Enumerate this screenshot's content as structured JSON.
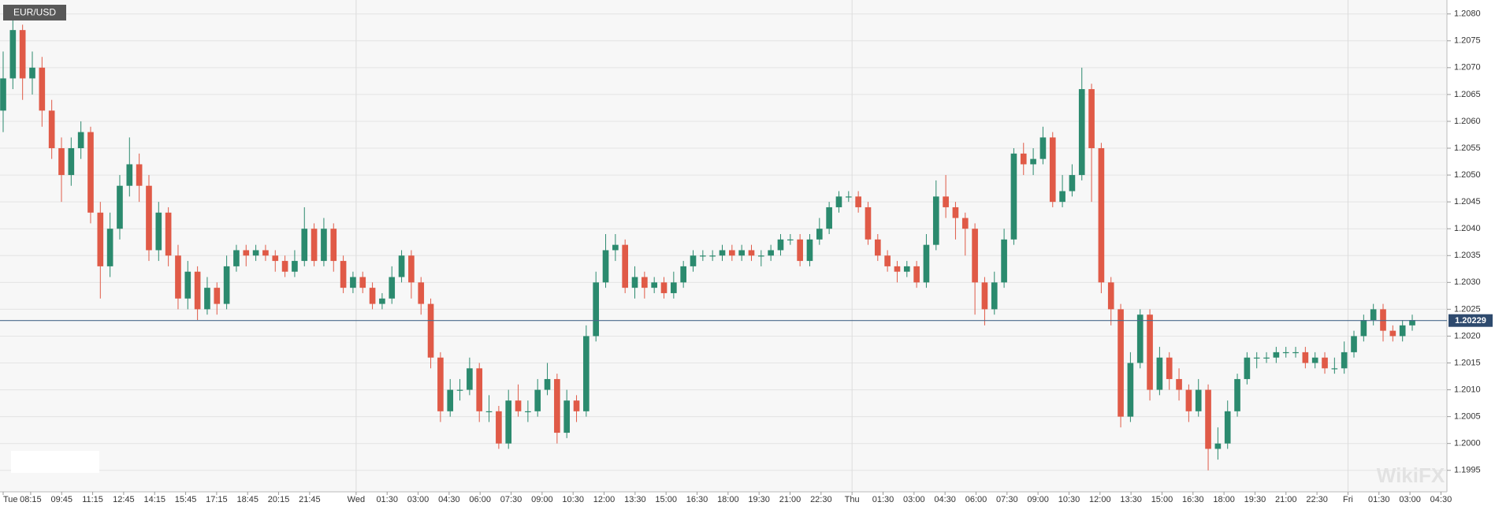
{
  "chart_data": {
    "type": "candlestick",
    "title": "EUR/USD",
    "watermark": "WikiFX",
    "up_color": "#2b8a6e",
    "down_color": "#e05a47",
    "grid": true,
    "last_price": 1.20229,
    "ylim": [
      1.1991,
      1.20826
    ],
    "yticks": [
      {
        "value": 1.1995,
        "label": "1.1995"
      },
      {
        "value": 1.2,
        "label": "1.2000"
      },
      {
        "value": 1.2005,
        "label": "1.2005"
      },
      {
        "value": 1.201,
        "label": "1.2010"
      },
      {
        "value": 1.2015,
        "label": "1.2015"
      },
      {
        "value": 1.202,
        "label": "1.2020"
      },
      {
        "value": 1.2025,
        "label": "1.2025"
      },
      {
        "value": 1.203,
        "label": "1.2030"
      },
      {
        "value": 1.2035,
        "label": "1.2035"
      },
      {
        "value": 1.204,
        "label": "1.2040"
      },
      {
        "value": 1.2045,
        "label": "1.2045"
      },
      {
        "value": 1.205,
        "label": "1.2050"
      },
      {
        "value": 1.2055,
        "label": "1.2055"
      },
      {
        "value": 1.206,
        "label": "1.2060"
      },
      {
        "value": 1.2065,
        "label": "1.2065"
      },
      {
        "value": 1.207,
        "label": "1.2070"
      },
      {
        "value": 1.2075,
        "label": "1.2075"
      },
      {
        "value": 1.208,
        "label": "1.2080"
      }
    ],
    "x_labels": [
      "Tue",
      "08:15",
      "09:45",
      "11:15",
      "12:45",
      "14:15",
      "15:45",
      "17:15",
      "18:45",
      "20:15",
      "21:45",
      "Wed",
      "01:30",
      "03:00",
      "04:30",
      "06:00",
      "07:30",
      "09:00",
      "10:30",
      "12:00",
      "13:30",
      "15:00",
      "16:30",
      "18:00",
      "19:30",
      "21:00",
      "22:30",
      "Thu",
      "01:30",
      "03:00",
      "04:30",
      "06:00",
      "07:30",
      "09:00",
      "10:30",
      "12:00",
      "13:30",
      "15:00",
      "16:30",
      "18:00",
      "19:30",
      "21:00",
      "22:30",
      "Fri",
      "01:30",
      "03:00",
      "04:30"
    ],
    "open": [
      1.2062,
      1.2068,
      1.2077,
      1.2068,
      1.207,
      1.2062,
      1.2055,
      1.205,
      1.2055,
      1.2058,
      1.2043,
      1.2033,
      1.204,
      1.2048,
      1.2052,
      1.2048,
      1.2036,
      1.2043,
      1.2035,
      1.2027,
      1.2032,
      1.2025,
      1.2029,
      1.2026,
      1.2033,
      1.2036,
      1.2035,
      1.2036,
      1.2035,
      1.2034,
      1.2032,
      1.2034,
      1.204,
      1.2034,
      1.204,
      1.2034,
      1.2029,
      1.2031,
      1.2029,
      1.2026,
      1.2027,
      1.2031,
      1.2035,
      1.203,
      1.2026,
      1.2016,
      1.2006,
      1.201,
      1.201,
      1.2014,
      1.2006,
      1.2006,
      1.2,
      1.2008,
      1.2006,
      1.2006,
      1.201,
      1.2012,
      1.2002,
      1.2008,
      1.2006,
      1.202,
      1.203,
      1.2036,
      1.2037,
      1.2029,
      1.2031,
      1.2029,
      1.203,
      1.2028,
      1.203,
      1.2033,
      1.2035,
      1.2035,
      1.2035,
      1.2036,
      1.2035,
      1.2036,
      1.2035,
      1.2035,
      1.2036,
      1.2038,
      1.2038,
      1.2034,
      1.2038,
      1.204,
      1.2044,
      1.2046,
      1.2046,
      1.2044,
      1.2038,
      1.2035,
      1.2033,
      1.2032,
      1.2033,
      1.203,
      1.2037,
      1.2046,
      1.2044,
      1.2042,
      1.204,
      1.203,
      1.2025,
      1.203,
      1.2038,
      1.2054,
      1.2052,
      1.2053,
      1.2057,
      1.2045,
      1.2047,
      1.205,
      1.2066,
      1.2055,
      1.203,
      1.2025,
      1.2005,
      1.2015,
      1.2024,
      1.201,
      1.2016,
      1.2012,
      1.201,
      1.2006,
      1.201,
      1.1999,
      1.2,
      1.2006,
      1.2012,
      1.2016,
      1.2016,
      1.2016,
      1.2017,
      1.2017,
      1.2017,
      1.2015,
      1.2016,
      1.2014,
      1.2014,
      1.2017,
      1.202,
      1.2023,
      1.2025,
      1.2021,
      1.202,
      1.2022
    ],
    "high": [
      1.2073,
      1.208,
      1.2078,
      1.2073,
      1.2072,
      1.2064,
      1.2057,
      1.2057,
      1.206,
      1.2059,
      1.2045,
      1.2043,
      1.205,
      1.2057,
      1.2054,
      1.205,
      1.2045,
      1.2044,
      1.2037,
      1.2034,
      1.2033,
      1.2031,
      1.203,
      1.2035,
      1.2037,
      1.2037,
      1.2037,
      1.2037,
      1.2036,
      1.2035,
      1.2036,
      1.2044,
      1.2041,
      1.2042,
      1.2041,
      1.2035,
      1.2032,
      1.2032,
      1.203,
      1.2028,
      1.2033,
      1.2036,
      1.2036,
      1.2031,
      1.2027,
      1.2017,
      1.2012,
      1.2012,
      1.2016,
      1.2015,
      1.2009,
      1.2007,
      1.201,
      1.2011,
      1.2008,
      1.2012,
      1.2015,
      1.2013,
      1.201,
      1.2009,
      1.2022,
      1.2032,
      1.2039,
      1.2039,
      1.2038,
      1.2033,
      1.2032,
      1.2031,
      1.2031,
      1.2032,
      1.2034,
      1.2036,
      1.2036,
      1.2036,
      1.2037,
      1.2037,
      1.2037,
      1.2037,
      1.2036,
      1.2037,
      1.2039,
      1.2039,
      1.2039,
      1.2039,
      1.2042,
      1.2045,
      1.2047,
      1.2047,
      1.2047,
      1.2045,
      1.2039,
      1.2036,
      1.2034,
      1.2034,
      1.2034,
      1.2039,
      1.2049,
      1.205,
      1.2045,
      1.2043,
      1.2041,
      1.2031,
      1.2032,
      1.204,
      1.2055,
      1.2056,
      1.2055,
      1.2059,
      1.2058,
      1.205,
      1.2052,
      1.207,
      1.2067,
      1.2056,
      1.2031,
      1.2026,
      1.2017,
      1.2025,
      1.2025,
      1.2018,
      1.2017,
      1.2014,
      1.2011,
      1.2012,
      1.2011,
      1.2003,
      1.2008,
      1.2013,
      1.2017,
      1.2017,
      1.2017,
      1.2018,
      1.2018,
      1.2018,
      1.2018,
      1.2017,
      1.2017,
      1.2016,
      1.2019,
      1.2021,
      1.2024,
      1.2026,
      1.2026,
      1.2022,
      1.2023,
      1.2024
    ],
    "low": [
      1.2058,
      1.2066,
      1.2064,
      1.2065,
      1.2059,
      1.2053,
      1.2045,
      1.2048,
      1.2053,
      1.2041,
      1.2027,
      1.2031,
      1.2038,
      1.2046,
      1.2045,
      1.2034,
      1.2034,
      1.2033,
      1.2025,
      1.2025,
      1.2023,
      1.2024,
      1.2024,
      1.2025,
      1.2032,
      1.2033,
      1.2034,
      1.2034,
      1.2032,
      1.2031,
      1.2031,
      1.2033,
      1.2033,
      1.2033,
      1.2032,
      1.2028,
      1.2028,
      1.2028,
      1.2025,
      1.2025,
      1.2026,
      1.203,
      1.2027,
      1.2024,
      1.2014,
      1.2004,
      1.2005,
      1.2008,
      1.2009,
      1.2004,
      1.2004,
      1.1999,
      1.1999,
      1.2005,
      1.2004,
      1.2005,
      1.2009,
      1.2,
      1.2001,
      1.2004,
      1.2005,
      1.2019,
      1.2029,
      1.2034,
      1.2028,
      1.2027,
      1.2027,
      1.2028,
      1.2027,
      1.2027,
      1.2029,
      1.2032,
      1.2034,
      1.2034,
      1.2034,
      1.2034,
      1.2034,
      1.2034,
      1.2033,
      1.2034,
      1.2035,
      1.2037,
      1.2033,
      1.2033,
      1.2037,
      1.2039,
      1.2043,
      1.2045,
      1.2043,
      1.2037,
      1.2034,
      1.2032,
      1.203,
      1.2031,
      1.2029,
      1.2029,
      1.2036,
      1.2042,
      1.2038,
      1.2035,
      1.2024,
      1.2022,
      1.2024,
      1.2029,
      1.2037,
      1.205,
      1.205,
      1.2052,
      1.2044,
      1.2044,
      1.2046,
      1.2049,
      1.2045,
      1.2028,
      1.2022,
      1.2003,
      1.2004,
      1.2014,
      1.2008,
      1.2009,
      1.201,
      1.2008,
      1.2004,
      1.2005,
      1.1995,
      1.1997,
      1.1999,
      1.2005,
      1.2011,
      1.2014,
      1.2015,
      1.2015,
      1.2016,
      1.2016,
      1.2014,
      1.2014,
      1.2013,
      1.2013,
      1.2013,
      1.2016,
      1.2019,
      1.2022,
      1.2019,
      1.2019,
      1.2019,
      1.2021
    ],
    "close": [
      1.2068,
      1.2077,
      1.2068,
      1.207,
      1.2062,
      1.2055,
      1.205,
      1.2055,
      1.2058,
      1.2043,
      1.2033,
      1.204,
      1.2048,
      1.2052,
      1.2048,
      1.2036,
      1.2043,
      1.2035,
      1.2027,
      1.2032,
      1.2025,
      1.2029,
      1.2026,
      1.2033,
      1.2036,
      1.2035,
      1.2036,
      1.2035,
      1.2034,
      1.2032,
      1.2034,
      1.204,
      1.2034,
      1.204,
      1.2034,
      1.2029,
      1.2031,
      1.2029,
      1.2026,
      1.2027,
      1.2031,
      1.2035,
      1.203,
      1.2026,
      1.2016,
      1.2006,
      1.201,
      1.201,
      1.2014,
      1.2006,
      1.2006,
      1.2,
      1.2008,
      1.2006,
      1.2006,
      1.201,
      1.2012,
      1.2002,
      1.2008,
      1.2006,
      1.202,
      1.203,
      1.2036,
      1.2037,
      1.2029,
      1.2031,
      1.2029,
      1.203,
      1.2028,
      1.203,
      1.2033,
      1.2035,
      1.2035,
      1.2035,
      1.2036,
      1.2035,
      1.2036,
      1.2035,
      1.2035,
      1.2036,
      1.2038,
      1.2038,
      1.2034,
      1.2038,
      1.204,
      1.2044,
      1.2046,
      1.2046,
      1.2044,
      1.2038,
      1.2035,
      1.2033,
      1.2032,
      1.2033,
      1.203,
      1.2037,
      1.2046,
      1.2044,
      1.2042,
      1.204,
      1.203,
      1.2025,
      1.203,
      1.2038,
      1.2054,
      1.2052,
      1.2053,
      1.2057,
      1.2045,
      1.2047,
      1.205,
      1.2066,
      1.2055,
      1.203,
      1.2025,
      1.2005,
      1.2015,
      1.2024,
      1.201,
      1.2016,
      1.2012,
      1.201,
      1.2006,
      1.201,
      1.1999,
      1.2,
      1.2006,
      1.2012,
      1.2016,
      1.2016,
      1.2016,
      1.2017,
      1.2017,
      1.2017,
      1.2015,
      1.2016,
      1.2014,
      1.2014,
      1.2017,
      1.202,
      1.2023,
      1.2025,
      1.2021,
      1.202,
      1.2022,
      1.2023
    ]
  }
}
